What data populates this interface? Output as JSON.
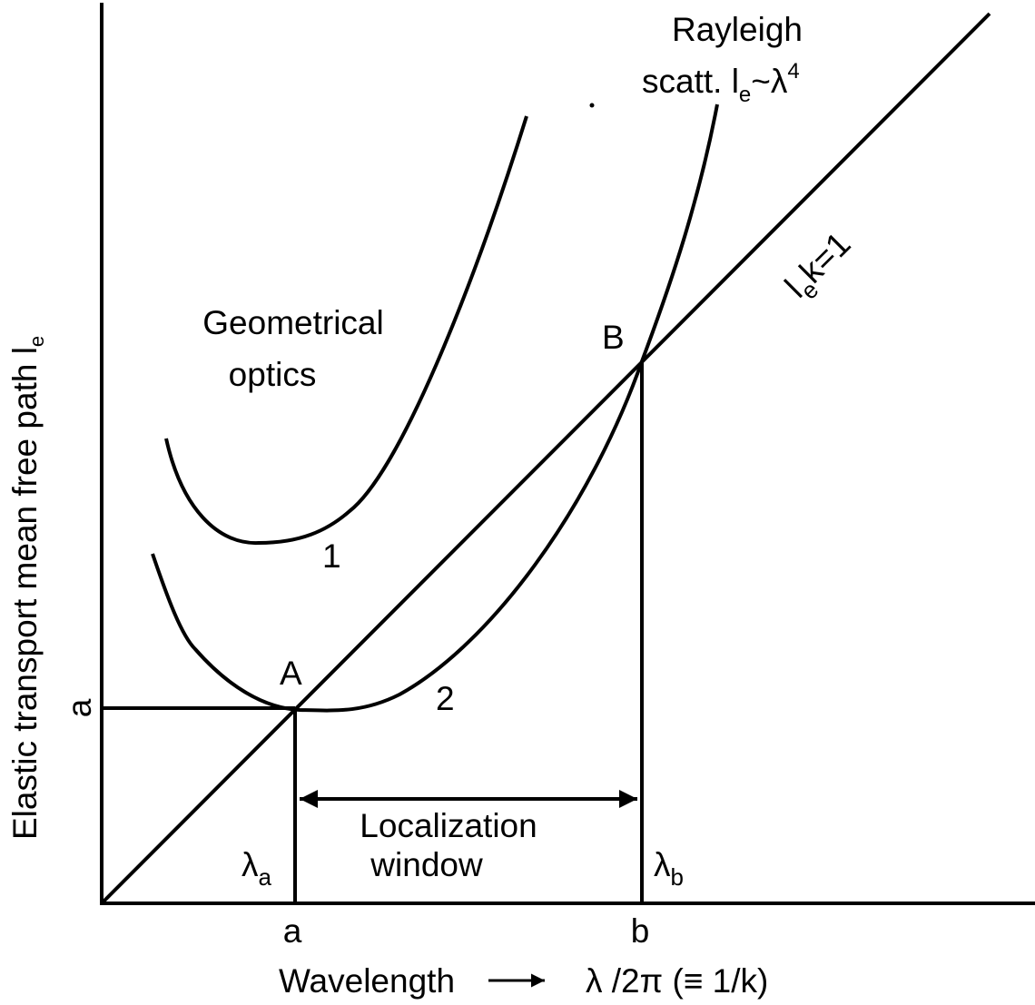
{
  "title_rayleigh": {
    "line1": "Rayleigh",
    "line2": "scatt. l",
    "sub": "e",
    "tilde": "~λ",
    "sup": "4"
  },
  "diagonal_label": {
    "l": "l",
    "sub": "e",
    "rest": "k=1"
  },
  "region_label": {
    "line1": "Geometrical",
    "line2": "optics"
  },
  "points": {
    "A": "A",
    "B": "B"
  },
  "curves": {
    "c1": "1",
    "c2": "2"
  },
  "y_tick": "a",
  "x_ticks": {
    "a": "a",
    "b": "b"
  },
  "window_label": {
    "line1": "Localization",
    "line2": "window"
  },
  "lambda_a": {
    "sym": "λ",
    "sub": "a"
  },
  "lambda_b": {
    "sym": "λ",
    "sub": "b"
  },
  "y_axis": {
    "text": "Elastic transport mean free path  l",
    "sub": "e"
  },
  "x_axis": {
    "word": "Wavelength",
    "expr": "λ /2π  (≡ 1/k)"
  }
}
